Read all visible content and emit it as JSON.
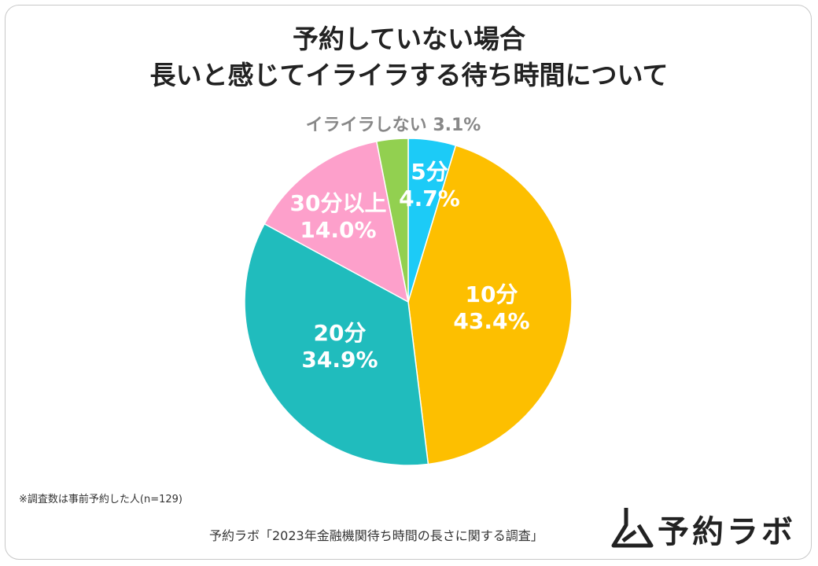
{
  "title_line1": "予約していない場合",
  "title_line2": "長いと感じてイライラする待ち時間について",
  "note": "※調査数は事前予約した人(n=129)",
  "source": "予約ラボ「2023年金融機関待ち時間の長さに関する調査」",
  "logo_text": "予約ラボ",
  "chart_data": {
    "type": "pie",
    "title": "",
    "slices": [
      {
        "label": "5分",
        "value": 4.7,
        "display": "4.7%",
        "color": "#1ccbf7",
        "label_color": "#ffffff"
      },
      {
        "label": "10分",
        "value": 43.4,
        "display": "43.4%",
        "color": "#fdbf00",
        "label_color": "#ffffff"
      },
      {
        "label": "20分",
        "value": 34.9,
        "display": "34.9%",
        "color": "#20bcbd",
        "label_color": "#ffffff"
      },
      {
        "label": "30分以上",
        "value": 14.0,
        "display": "14.0%",
        "color": "#fda0cb",
        "label_color": "#ffffff"
      },
      {
        "label": "イライラしない",
        "value": 3.1,
        "display": "3.1%",
        "color": "#92d050",
        "label_color": "#888888"
      }
    ]
  }
}
